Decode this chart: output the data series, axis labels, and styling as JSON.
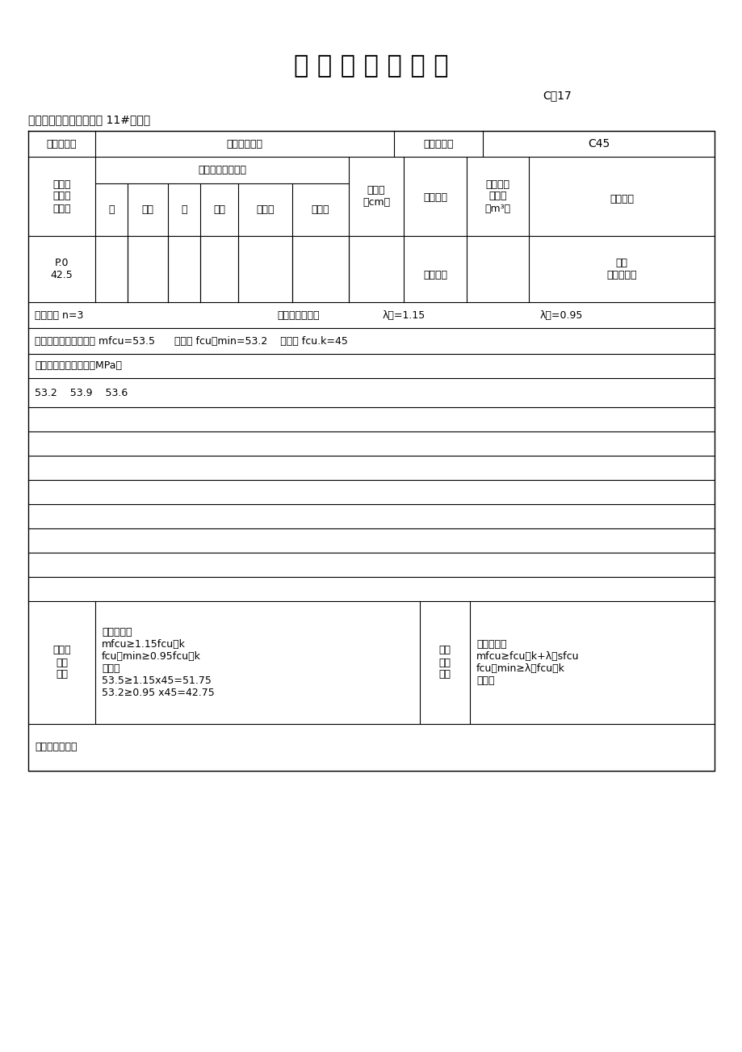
{
  "title": "混 凝 土 强 度 评 定",
  "code": "C！17",
  "unit_project": "单位工程：金座雅园三期 11#楼工程",
  "acceptance_name": "验收批名称",
  "main_part": "主体分部工程",
  "strength_grade_label": "砖强度等级",
  "strength_grade_value": "C45",
  "mix_ratio": "配合比（重量比）",
  "slump_label": "坐落度\n（cm）",
  "care_label": "养护条件",
  "batch_label": "同批砖代\n表数量\n（m³）",
  "structure_label": "结构部位",
  "cement_type_line1": "水泥品",
  "cement_type_line2": "种及强",
  "cement_type_line3": "度等级",
  "water": "水",
  "cement_col": "水泥",
  "sand": "砂",
  "stone": "石子",
  "additive": "外加剂",
  "admixture": "掇和料",
  "cement_value_line1": "P.0",
  "cement_value_line2": "42.5",
  "care_value": "标准养护",
  "structure_value_line1": "三层",
  "structure_value_line2": "墙梁板柱梯",
  "row_n_label": "试件组数 n=3",
  "row_coeff_label": "合格判定系数：",
  "lambda3": "λ３=1.15",
  "lambda4": "λ４=0.95",
  "row_mean": "同一验收批强度平均値 mfcu=53.5      最小値 fcu，min=53.2    标准値 fcu.k=45",
  "row_strength_label": "验收批各组试件强度（MPa）",
  "row_values": "53.2    53.9    53.6",
  "non_stat_label_lines": [
    "非统计",
    "方法",
    "评定"
  ],
  "non_stat_title": "评定条件：",
  "non_stat_line1": "mfcu≥1.15fcu，k",
  "non_stat_line2": "fcu，min≥0.95fcu，k",
  "non_stat_line3": "计算：",
  "non_stat_line4": "53.5≥1.15x45=51.75",
  "non_stat_line5": "53.2≥0.95 x45=42.75",
  "stat_label_lines": [
    "统计",
    "方法",
    "评定"
  ],
  "stat_title": "统计条件：",
  "stat_line1": "mfcu≥fcu，k+λ１sfcu",
  "stat_line2": "fcu，min≥λ２fcu，k",
  "stat_line3": "计算：",
  "conclusion_label": "验收评定结论："
}
